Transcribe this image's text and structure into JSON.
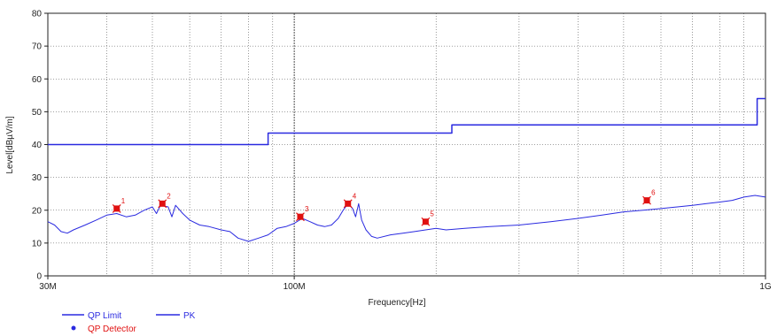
{
  "chart_data": {
    "type": "line",
    "xscale": "log",
    "xlim": [
      30000000,
      1000000000
    ],
    "ylim": [
      0,
      80
    ],
    "xlabel": "Frequency[Hz]",
    "ylabel": "Level[dBµV/m]",
    "x_tick_labels": [
      "30M",
      "100M",
      "1G"
    ],
    "y_ticks": [
      0,
      10,
      20,
      30,
      40,
      50,
      60,
      70,
      80
    ],
    "grid": true,
    "legend_position": "bottom-left",
    "legend": [
      {
        "label": "QP Limit",
        "symbol": "line",
        "color": "#2a2ae0"
      },
      {
        "label": "PK",
        "symbol": "line",
        "color": "#2a2ae0"
      },
      {
        "label": "QP Detector",
        "symbol": "dot",
        "color": "#e01010"
      }
    ],
    "series": [
      {
        "name": "QP Limit",
        "color": "#2a2ae0",
        "step": true,
        "points": [
          [
            30000000,
            40
          ],
          [
            88000000,
            40
          ],
          [
            88000000,
            43.5
          ],
          [
            216000000,
            43.5
          ],
          [
            216000000,
            46
          ],
          [
            960000000,
            46
          ],
          [
            960000000,
            54
          ],
          [
            1000000000,
            54
          ]
        ]
      },
      {
        "name": "PK",
        "color": "#2a2ae0",
        "points": [
          [
            30000000,
            16.5
          ],
          [
            31000000,
            15.5
          ],
          [
            32000000,
            13.5
          ],
          [
            33000000,
            13
          ],
          [
            34000000,
            14
          ],
          [
            36000000,
            15.5
          ],
          [
            38000000,
            17
          ],
          [
            40000000,
            18.5
          ],
          [
            42000000,
            19
          ],
          [
            44000000,
            18
          ],
          [
            46000000,
            18.5
          ],
          [
            48000000,
            20
          ],
          [
            50000000,
            21
          ],
          [
            51000000,
            19
          ],
          [
            52000000,
            21.5
          ],
          [
            54000000,
            21
          ],
          [
            55000000,
            18
          ],
          [
            56000000,
            21.5
          ],
          [
            58000000,
            19
          ],
          [
            60000000,
            17
          ],
          [
            63000000,
            15.5
          ],
          [
            66000000,
            15
          ],
          [
            70000000,
            14
          ],
          [
            73000000,
            13.5
          ],
          [
            76000000,
            11.5
          ],
          [
            80000000,
            10.5
          ],
          [
            84000000,
            11.5
          ],
          [
            88000000,
            12.5
          ],
          [
            92000000,
            14.5
          ],
          [
            96000000,
            15
          ],
          [
            100000000,
            16
          ],
          [
            104000000,
            17.5
          ],
          [
            108000000,
            16.5
          ],
          [
            112000000,
            15.5
          ],
          [
            116000000,
            15
          ],
          [
            120000000,
            15.5
          ],
          [
            124000000,
            17.5
          ],
          [
            127000000,
            20
          ],
          [
            130000000,
            22
          ],
          [
            133000000,
            20.5
          ],
          [
            135000000,
            18
          ],
          [
            137000000,
            22
          ],
          [
            139000000,
            17
          ],
          [
            142000000,
            14
          ],
          [
            146000000,
            12
          ],
          [
            150000000,
            11.5
          ],
          [
            160000000,
            12.5
          ],
          [
            170000000,
            13
          ],
          [
            180000000,
            13.5
          ],
          [
            190000000,
            14
          ],
          [
            200000000,
            14.5
          ],
          [
            210000000,
            14
          ],
          [
            230000000,
            14.5
          ],
          [
            260000000,
            15
          ],
          [
            300000000,
            15.5
          ],
          [
            350000000,
            16.5
          ],
          [
            400000000,
            17.5
          ],
          [
            450000000,
            18.5
          ],
          [
            500000000,
            19.5
          ],
          [
            550000000,
            20
          ],
          [
            600000000,
            20.5
          ],
          [
            650000000,
            21
          ],
          [
            700000000,
            21.5
          ],
          [
            750000000,
            22
          ],
          [
            800000000,
            22.5
          ],
          [
            850000000,
            23
          ],
          [
            900000000,
            24
          ],
          [
            950000000,
            24.5
          ],
          [
            1000000000,
            24
          ]
        ]
      }
    ],
    "qp_detector_points": [
      {
        "label": "1",
        "x": 42000000,
        "y": 20.5
      },
      {
        "label": "2",
        "x": 52500000,
        "y": 22
      },
      {
        "label": "3",
        "x": 103000000,
        "y": 18
      },
      {
        "label": "4",
        "x": 130000000,
        "y": 22
      },
      {
        "label": "5",
        "x": 190000000,
        "y": 16.5
      },
      {
        "label": "6",
        "x": 560000000,
        "y": 23
      }
    ]
  }
}
